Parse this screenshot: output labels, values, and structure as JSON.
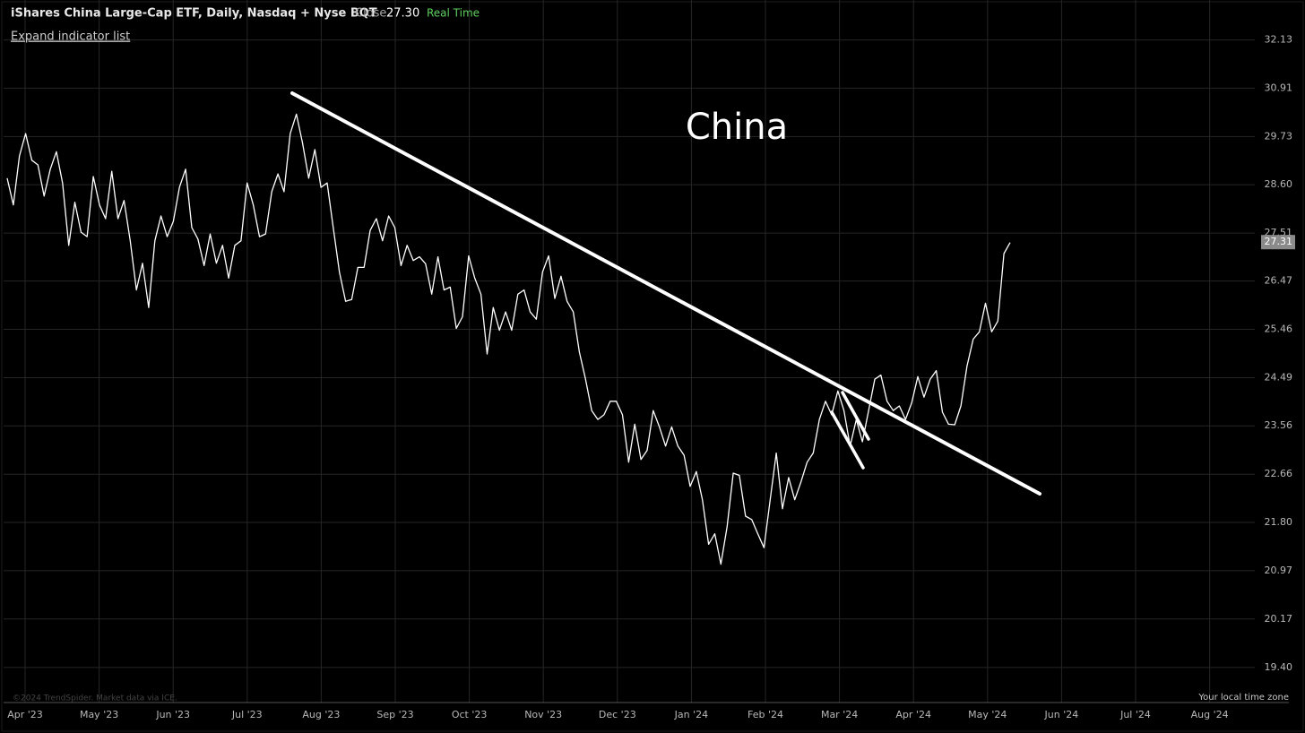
{
  "chart_data": {
    "type": "line",
    "title": "iShares China Large-Cap ETF, Daily, Nasdaq + Nyse BQT",
    "close_label": "Close",
    "close": "27.30",
    "status": "Real Time",
    "expand_link": "Expand indicator list",
    "annotation": "China",
    "copyright": "©2024 TrendSpider. Market data via ICE.",
    "timezone_note": "Your local time zone",
    "last_price": {
      "value": 27.31,
      "label": "27.31"
    },
    "log_scale": true,
    "grid": true,
    "series": [
      {
        "name": "Close",
        "color": "#ffffff",
        "values": [
          28.75,
          28.14,
          29.27,
          29.8,
          29.17,
          29.06,
          28.34,
          28.96,
          29.37,
          28.64,
          27.24,
          28.2,
          27.53,
          27.43,
          28.79,
          28.14,
          27.83,
          28.91,
          27.83,
          28.24,
          27.34,
          26.28,
          26.85,
          25.91,
          27.34,
          27.89,
          27.43,
          27.77,
          28.54,
          28.96,
          27.63,
          27.38,
          26.8,
          27.49,
          26.85,
          27.24,
          26.53,
          27.24,
          27.34,
          28.64,
          28.14,
          27.43,
          27.49,
          28.44,
          28.85,
          28.44,
          29.8,
          30.27,
          29.58,
          28.75,
          29.42,
          28.54,
          28.64,
          27.63,
          26.66,
          26.04,
          26.08,
          26.76,
          26.76,
          27.57,
          27.83,
          27.34,
          27.89,
          27.63,
          26.8,
          27.24,
          26.91,
          26.99,
          26.84,
          26.19,
          26.99,
          26.28,
          26.34,
          25.48,
          25.72,
          27.01,
          26.53,
          26.19,
          24.96,
          25.91,
          25.44,
          25.82,
          25.44,
          26.19,
          26.28,
          25.82,
          25.67,
          26.66,
          27.01,
          26.1,
          26.57,
          26.04,
          25.82,
          25.0,
          24.46,
          23.85,
          23.68,
          23.77,
          24.03,
          24.03,
          23.77,
          22.88,
          23.59,
          22.93,
          23.1,
          23.85,
          23.54,
          23.18,
          23.54,
          23.18,
          23.01,
          22.44,
          22.71,
          22.2,
          21.42,
          21.6,
          21.08,
          21.72,
          22.68,
          22.64,
          21.91,
          21.85,
          21.6,
          21.36,
          22.2,
          23.05,
          22.04,
          22.6,
          22.2,
          22.52,
          22.88,
          23.05,
          23.68,
          24.03,
          23.77,
          24.23,
          23.85,
          23.18,
          23.68,
          23.26,
          23.85,
          24.46,
          24.54,
          24.03,
          23.85,
          23.94,
          23.68,
          24.0,
          24.51,
          24.11,
          24.46,
          24.63,
          23.82,
          23.59,
          23.58,
          23.94,
          24.72,
          25.26,
          25.41,
          26.0,
          25.41,
          25.63,
          27.06,
          27.3
        ]
      }
    ],
    "ylim": [
      18.86,
      33.18
    ],
    "yticks": [
      32.13,
      30.91,
      29.73,
      {
        "value": 28.6,
        "label": "28.60"
      },
      27.51,
      26.47,
      25.46,
      24.49,
      23.56,
      22.66,
      {
        "value": 21.8,
        "label": "21.80"
      },
      20.97,
      20.17,
      {
        "value": 19.4,
        "label": "19.40"
      }
    ],
    "xticks": [
      {
        "value": "2023-04",
        "label": "Apr '23"
      },
      {
        "value": "2023-05",
        "label": "May '23"
      },
      {
        "value": "2023-06",
        "label": "Jun '23"
      },
      {
        "value": "2023-07",
        "label": "Jul '23"
      },
      {
        "value": "2023-08",
        "label": "Aug '23"
      },
      {
        "value": "2023-09",
        "label": "Sep '23"
      },
      {
        "value": "2023-10",
        "label": "Oct '23"
      },
      {
        "value": "2023-11",
        "label": "Nov '23"
      },
      {
        "value": "2023-12",
        "label": "Dec '23"
      },
      {
        "value": "2024-01",
        "label": "Jan '24"
      },
      {
        "value": "2024-02",
        "label": "Feb '24"
      },
      {
        "value": "2024-03",
        "label": "Mar '24"
      },
      {
        "value": "2024-04",
        "label": "Apr '24"
      },
      {
        "value": "2024-05",
        "label": "May '24"
      },
      {
        "value": "2024-06",
        "label": "Jun '24"
      },
      {
        "value": "2024-07",
        "label": "Jul '24"
      },
      {
        "value": "2024-08",
        "label": "Aug '24"
      }
    ]
  }
}
